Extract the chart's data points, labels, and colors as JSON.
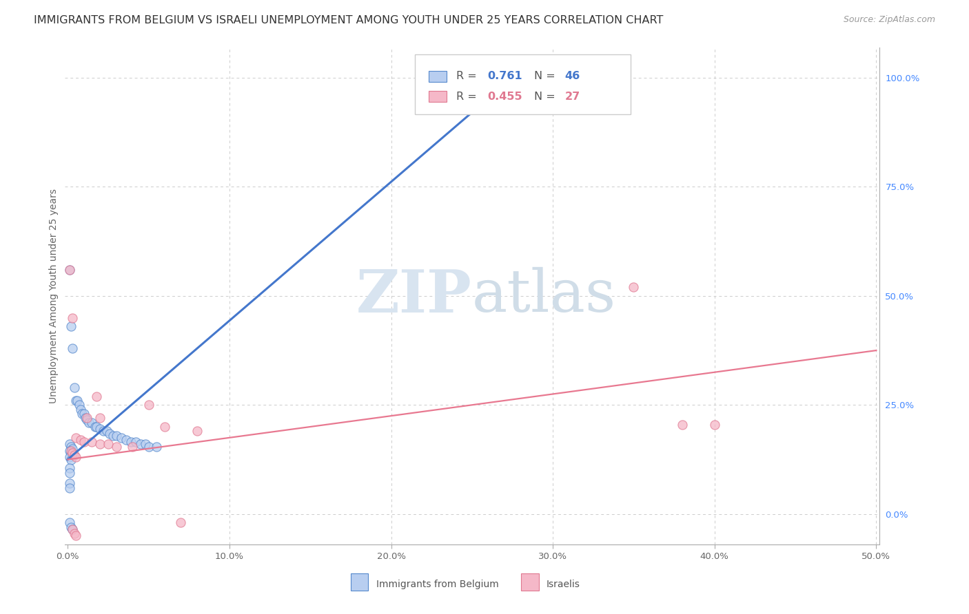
{
  "title": "IMMIGRANTS FROM BELGIUM VS ISRAELI UNEMPLOYMENT AMONG YOUTH UNDER 25 YEARS CORRELATION CHART",
  "source": "Source: ZipAtlas.com",
  "ylabel": "Unemployment Among Youth under 25 years",
  "xlim": [
    -0.002,
    0.502
  ],
  "ylim": [
    -0.07,
    1.07
  ],
  "xticks": [
    0.0,
    0.1,
    0.2,
    0.3,
    0.4,
    0.5
  ],
  "xticklabels": [
    "0.0%",
    "10.0%",
    "20.0%",
    "30.0%",
    "40.0%",
    "50.0%"
  ],
  "yticks_right": [
    0.0,
    0.25,
    0.5,
    0.75,
    1.0
  ],
  "yticklabels_right": [
    "0.0%",
    "25.0%",
    "50.0%",
    "75.0%",
    "100.0%"
  ],
  "blue_scatter": [
    [
      0.001,
      0.56
    ],
    [
      0.002,
      0.43
    ],
    [
      0.003,
      0.38
    ],
    [
      0.004,
      0.29
    ],
    [
      0.005,
      0.26
    ],
    [
      0.006,
      0.26
    ],
    [
      0.007,
      0.25
    ],
    [
      0.008,
      0.24
    ],
    [
      0.009,
      0.23
    ],
    [
      0.01,
      0.23
    ],
    [
      0.011,
      0.22
    ],
    [
      0.012,
      0.215
    ],
    [
      0.013,
      0.21
    ],
    [
      0.015,
      0.21
    ],
    [
      0.017,
      0.2
    ],
    [
      0.018,
      0.2
    ],
    [
      0.02,
      0.195
    ],
    [
      0.022,
      0.19
    ],
    [
      0.024,
      0.19
    ],
    [
      0.026,
      0.185
    ],
    [
      0.028,
      0.18
    ],
    [
      0.03,
      0.18
    ],
    [
      0.033,
      0.175
    ],
    [
      0.036,
      0.17
    ],
    [
      0.039,
      0.165
    ],
    [
      0.042,
      0.165
    ],
    [
      0.045,
      0.16
    ],
    [
      0.048,
      0.16
    ],
    [
      0.05,
      0.155
    ],
    [
      0.055,
      0.155
    ],
    [
      0.001,
      0.16
    ],
    [
      0.002,
      0.155
    ],
    [
      0.003,
      0.15
    ],
    [
      0.001,
      0.145
    ],
    [
      0.002,
      0.14
    ],
    [
      0.003,
      0.135
    ],
    [
      0.001,
      0.13
    ],
    [
      0.002,
      0.125
    ],
    [
      0.001,
      0.105
    ],
    [
      0.001,
      0.095
    ],
    [
      0.001,
      0.07
    ],
    [
      0.001,
      0.06
    ],
    [
      0.001,
      -0.02
    ],
    [
      0.002,
      -0.03
    ],
    [
      0.003,
      -0.035
    ],
    [
      0.27,
      0.975
    ]
  ],
  "pink_scatter": [
    [
      0.001,
      0.56
    ],
    [
      0.003,
      0.45
    ],
    [
      0.018,
      0.27
    ],
    [
      0.05,
      0.25
    ],
    [
      0.012,
      0.22
    ],
    [
      0.02,
      0.22
    ],
    [
      0.06,
      0.2
    ],
    [
      0.08,
      0.19
    ],
    [
      0.005,
      0.175
    ],
    [
      0.008,
      0.17
    ],
    [
      0.01,
      0.165
    ],
    [
      0.015,
      0.165
    ],
    [
      0.02,
      0.16
    ],
    [
      0.025,
      0.16
    ],
    [
      0.03,
      0.155
    ],
    [
      0.04,
      0.155
    ],
    [
      0.002,
      0.145
    ],
    [
      0.003,
      0.14
    ],
    [
      0.004,
      0.135
    ],
    [
      0.005,
      0.13
    ],
    [
      0.35,
      0.52
    ],
    [
      0.38,
      0.205
    ],
    [
      0.4,
      0.205
    ],
    [
      0.07,
      -0.02
    ],
    [
      0.003,
      -0.035
    ],
    [
      0.004,
      -0.045
    ],
    [
      0.005,
      -0.05
    ]
  ],
  "blue_line_x": [
    0.0,
    0.275
  ],
  "blue_line_y": [
    0.125,
    1.0
  ],
  "pink_line_x": [
    0.0,
    0.5
  ],
  "pink_line_y": [
    0.125,
    0.375
  ],
  "background_color": "#ffffff",
  "grid_color": "#cccccc",
  "watermark_zip": "ZIP",
  "watermark_atlas": "atlas",
  "marker_size": 90,
  "title_fontsize": 11.5,
  "axis_fontsize": 10,
  "tick_fontsize": 9.5,
  "blue_color_fill": "#b8cef0",
  "blue_color_edge": "#5588cc",
  "pink_color_fill": "#f5b8c8",
  "pink_color_edge": "#e07890",
  "blue_line_color": "#4477cc",
  "pink_line_color": "#e87890"
}
